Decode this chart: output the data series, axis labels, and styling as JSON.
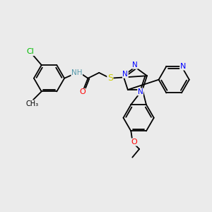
{
  "background_color": "#ebebeb",
  "bond_color": "#000000",
  "atom_colors": {
    "Cl": "#00bb00",
    "N": "#0000ff",
    "O": "#ff0000",
    "S": "#cccc00",
    "H_color": "#5599aa"
  },
  "font_size": 7.5,
  "line_width": 1.3
}
